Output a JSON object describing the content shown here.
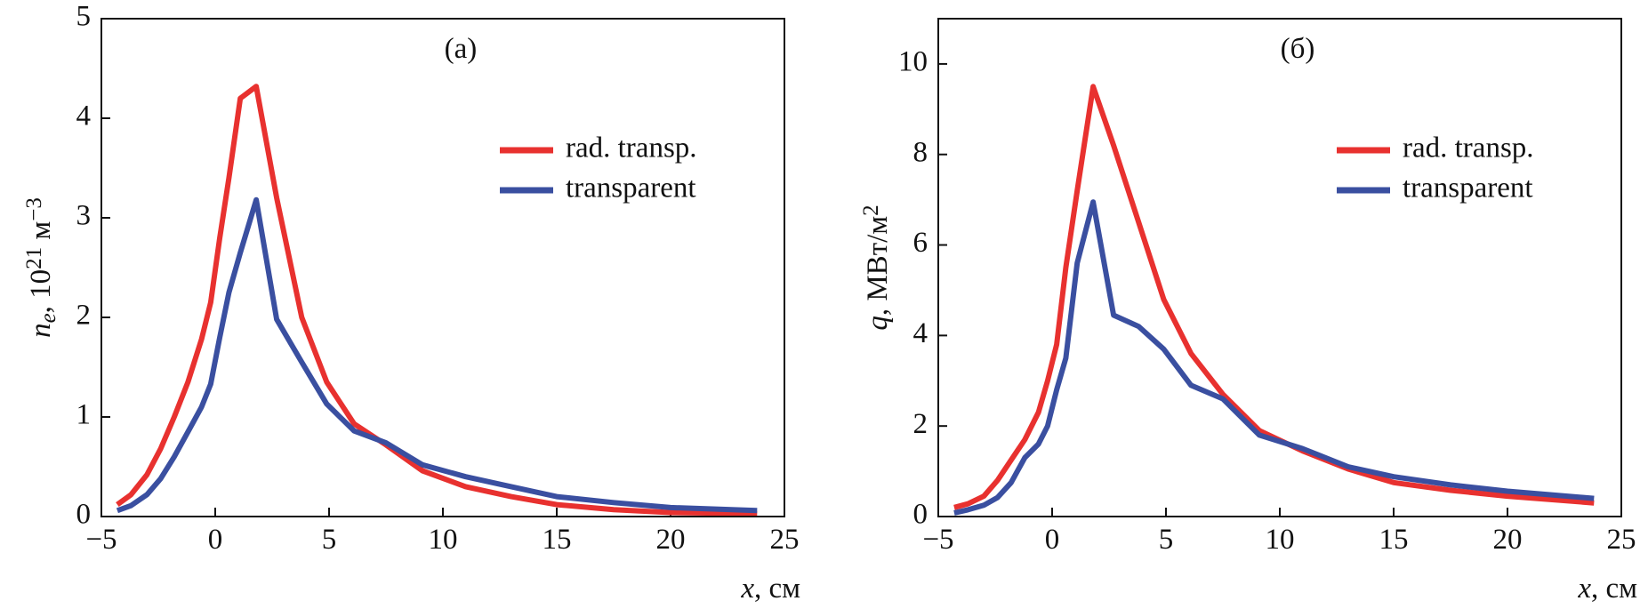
{
  "chart_data": [
    {
      "type": "line",
      "annotation": "(a)",
      "xlabel": [
        "x",
        ", см"
      ],
      "ylabel": [
        "n",
        "e",
        ", 10",
        "21",
        " м",
        "−3"
      ],
      "x": [
        -4.3,
        -3.7,
        -3,
        -2.4,
        -1.8,
        -1.2,
        -0.6,
        -0.2,
        0.2,
        0.6,
        1.1,
        1.8,
        2.7,
        3.8,
        4.9,
        6.1,
        7.5,
        9.1,
        11,
        13,
        15,
        17.5,
        20,
        23.8
      ],
      "series": [
        {
          "name": "rad. transp.",
          "color": "#e8312f",
          "values": [
            0.12,
            0.22,
            0.42,
            0.68,
            1.0,
            1.35,
            1.78,
            2.15,
            2.8,
            3.4,
            4.2,
            4.32,
            3.2,
            2.0,
            1.35,
            0.93,
            0.72,
            0.46,
            0.3,
            0.2,
            0.12,
            0.07,
            0.04,
            0.03
          ]
        },
        {
          "name": "transparent",
          "color": "#3a4fa0",
          "values": [
            0.06,
            0.11,
            0.22,
            0.38,
            0.6,
            0.85,
            1.1,
            1.33,
            1.8,
            2.25,
            2.65,
            3.18,
            1.98,
            1.55,
            1.13,
            0.86,
            0.74,
            0.52,
            0.4,
            0.3,
            0.2,
            0.14,
            0.09,
            0.06
          ]
        }
      ],
      "xlim": [
        -5,
        25
      ],
      "xticks": [
        {
          "value": -5,
          "label": "−5"
        },
        0,
        5,
        10,
        15,
        20,
        25
      ],
      "ylim": [
        0,
        5
      ],
      "yticks": [
        0,
        1,
        2,
        3,
        4,
        5
      ],
      "legend": "upper right"
    },
    {
      "type": "line",
      "annotation": "(б)",
      "xlabel": [
        "x",
        ", см"
      ],
      "ylabel": [
        "q",
        ", МВт/м",
        "2"
      ],
      "x": [
        -4.3,
        -3.7,
        -3,
        -2.4,
        -1.8,
        -1.2,
        -0.6,
        -0.2,
        0.2,
        0.6,
        1.1,
        1.8,
        2.7,
        3.8,
        4.9,
        6.1,
        7.5,
        9.1,
        11,
        13,
        15,
        17.5,
        20,
        23.8
      ],
      "series": [
        {
          "name": "rad. transp.",
          "color": "#e8312f",
          "values": [
            0.2,
            0.28,
            0.45,
            0.8,
            1.25,
            1.7,
            2.3,
            3.0,
            3.8,
            5.5,
            7.2,
            9.5,
            8.2,
            6.5,
            4.8,
            3.6,
            2.7,
            1.9,
            1.45,
            1.05,
            0.75,
            0.58,
            0.45,
            0.3
          ]
        },
        {
          "name": "transparent",
          "color": "#3a4fa0",
          "values": [
            0.08,
            0.15,
            0.25,
            0.42,
            0.75,
            1.3,
            1.6,
            2.0,
            2.8,
            3.5,
            5.6,
            6.95,
            4.45,
            4.2,
            3.7,
            2.9,
            2.6,
            1.8,
            1.5,
            1.1,
            0.88,
            0.7,
            0.56,
            0.4
          ]
        }
      ],
      "xlim": [
        -5,
        25
      ],
      "xticks": [
        {
          "value": -5,
          "label": "−5"
        },
        0,
        5,
        10,
        15,
        20,
        25
      ],
      "ylim": [
        0,
        11
      ],
      "yticks": [
        0,
        2,
        4,
        6,
        8,
        10
      ],
      "legend": "upper right"
    }
  ]
}
